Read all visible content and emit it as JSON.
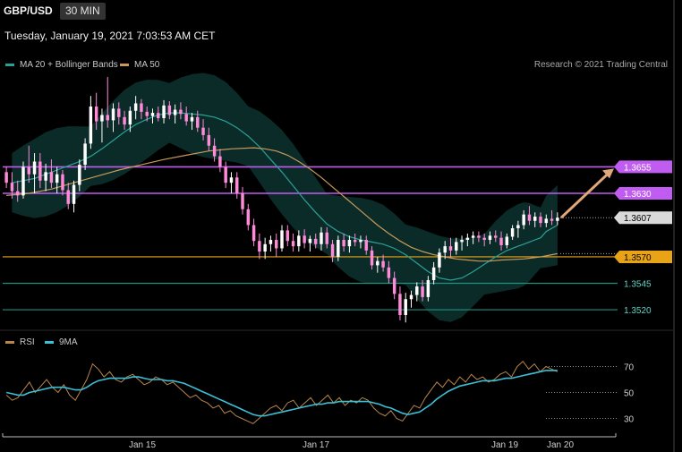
{
  "header": {
    "symbol": "GBP/USD",
    "timeframe": "30 MIN",
    "datetime": "Tuesday, January 19, 2021 7:03:53 AM CET"
  },
  "legend": {
    "ma20": "MA 20 + Bollinger Bands",
    "ma50": "MA 50",
    "credit": "Research © 2021 Trading Central",
    "rsi": "RSI",
    "rsi_ma": "9MA"
  },
  "colors": {
    "ma20": "#2aa198",
    "ma50": "#c79a5b",
    "resistance": "#c15cf0",
    "support": "#e8a317",
    "support_weak": "#1f8f80",
    "arrow": "#e0a878",
    "rsi": "#b8864b",
    "rsi_ma": "#3cc0d8",
    "candle_up": "#ffffff",
    "candle_down": "#ff8ad8"
  },
  "chart_data": [
    {
      "type": "candlestick",
      "title": "GBP/USD",
      "y_price_range": [
        1.3504,
        1.3745
      ],
      "x_labels": [
        "Jan 15",
        "Jan 17",
        "Jan 19",
        "Jan 20"
      ],
      "current_price": "1.3607",
      "levels": [
        {
          "label": "1.3655",
          "value": 1.3655,
          "kind": "resistance"
        },
        {
          "label": "1.3630",
          "value": 1.363,
          "kind": "resistance"
        },
        {
          "label": "1.3570",
          "value": 1.357,
          "kind": "support"
        },
        {
          "label": "1.3545",
          "value": 1.3545,
          "kind": "support_weak"
        },
        {
          "label": "1.3520",
          "value": 1.352,
          "kind": "support_weak"
        }
      ],
      "candles": [
        [
          1.365,
          1.3655,
          1.3635,
          1.364
        ],
        [
          1.364,
          1.365,
          1.3625,
          1.3632
        ],
        [
          1.3632,
          1.3642,
          1.3622,
          1.3628
        ],
        [
          1.3628,
          1.366,
          1.3625,
          1.3655
        ],
        [
          1.3655,
          1.3675,
          1.364,
          1.3648
        ],
        [
          1.3648,
          1.3668,
          1.363,
          1.366
        ],
        [
          1.366,
          1.3668,
          1.3635,
          1.3642
        ],
        [
          1.3642,
          1.3658,
          1.3632,
          1.365
        ],
        [
          1.365,
          1.3662,
          1.3635,
          1.364
        ],
        [
          1.364,
          1.3655,
          1.363,
          1.3648
        ],
        [
          1.3648,
          1.3652,
          1.3628,
          1.3633
        ],
        [
          1.3633,
          1.364,
          1.3615,
          1.362
        ],
        [
          1.362,
          1.3642,
          1.3612,
          1.3638
        ],
        [
          1.3638,
          1.3662,
          1.3632,
          1.3657
        ],
        [
          1.3657,
          1.3682,
          1.3652,
          1.3677
        ],
        [
          1.3677,
          1.3722,
          1.3672,
          1.3712
        ],
        [
          1.3712,
          1.3725,
          1.369,
          1.3698
        ],
        [
          1.3698,
          1.371,
          1.3678,
          1.3704
        ],
        [
          1.3704,
          1.374,
          1.3692,
          1.3699
        ],
        [
          1.3699,
          1.3715,
          1.3688,
          1.371
        ],
        [
          1.371,
          1.3716,
          1.3695,
          1.3702
        ],
        [
          1.3702,
          1.3708,
          1.369,
          1.3695
        ],
        [
          1.3695,
          1.3712,
          1.3688,
          1.3708
        ],
        [
          1.3708,
          1.3722,
          1.37,
          1.3715
        ],
        [
          1.3715,
          1.3719,
          1.37,
          1.3707
        ],
        [
          1.3707,
          1.3712,
          1.3698,
          1.3703
        ],
        [
          1.3703,
          1.371,
          1.3696,
          1.3706
        ],
        [
          1.3706,
          1.3712,
          1.3698,
          1.3701
        ],
        [
          1.3701,
          1.3718,
          1.3696,
          1.3713
        ],
        [
          1.3713,
          1.3717,
          1.37,
          1.3704
        ],
        [
          1.3704,
          1.3714,
          1.3696,
          1.3709
        ],
        [
          1.3709,
          1.3716,
          1.37,
          1.3705
        ],
        [
          1.3705,
          1.3712,
          1.3694,
          1.3698
        ],
        [
          1.3698,
          1.3706,
          1.369,
          1.3702
        ],
        [
          1.3702,
          1.3708,
          1.3688,
          1.3692
        ],
        [
          1.3692,
          1.37,
          1.368,
          1.3685
        ],
        [
          1.3685,
          1.3692,
          1.367,
          1.3675
        ],
        [
          1.3675,
          1.3682,
          1.366,
          1.3665
        ],
        [
          1.3665,
          1.3672,
          1.365,
          1.3655
        ],
        [
          1.3655,
          1.366,
          1.3635,
          1.364
        ],
        [
          1.364,
          1.365,
          1.363,
          1.3645
        ],
        [
          1.3645,
          1.365,
          1.3625,
          1.363
        ],
        [
          1.363,
          1.3636,
          1.361,
          1.3615
        ],
        [
          1.3615,
          1.362,
          1.3595,
          1.36
        ],
        [
          1.36,
          1.3606,
          1.358,
          1.3585
        ],
        [
          1.3585,
          1.3592,
          1.3568,
          1.3575
        ],
        [
          1.3575,
          1.3588,
          1.3568,
          1.3582
        ],
        [
          1.3582,
          1.359,
          1.3575,
          1.3586
        ],
        [
          1.3586,
          1.3592,
          1.357,
          1.3578
        ],
        [
          1.3578,
          1.36,
          1.3575,
          1.3595
        ],
        [
          1.3595,
          1.36,
          1.358,
          1.3585
        ],
        [
          1.3585,
          1.3592,
          1.3575,
          1.358
        ],
        [
          1.358,
          1.3595,
          1.3575,
          1.359
        ],
        [
          1.359,
          1.3596,
          1.3578,
          1.3583
        ],
        [
          1.3583,
          1.359,
          1.3575,
          1.3587
        ],
        [
          1.3587,
          1.3592,
          1.3578,
          1.3582
        ],
        [
          1.3582,
          1.3598,
          1.3576,
          1.3593
        ],
        [
          1.3593,
          1.3598,
          1.3578,
          1.3582
        ],
        [
          1.3582,
          1.3586,
          1.3565,
          1.357
        ],
        [
          1.357,
          1.359,
          1.3566,
          1.3586
        ],
        [
          1.3586,
          1.3592,
          1.3575,
          1.358
        ],
        [
          1.358,
          1.359,
          1.3574,
          1.3586
        ],
        [
          1.3586,
          1.3592,
          1.358,
          1.3584
        ],
        [
          1.3584,
          1.359,
          1.3578,
          1.3586
        ],
        [
          1.3586,
          1.359,
          1.3572,
          1.3576
        ],
        [
          1.3576,
          1.358,
          1.3558,
          1.3562
        ],
        [
          1.3562,
          1.357,
          1.3555,
          1.3566
        ],
        [
          1.3566,
          1.3572,
          1.3556,
          1.356
        ],
        [
          1.356,
          1.3566,
          1.3545,
          1.355
        ],
        [
          1.355,
          1.3556,
          1.353,
          1.3535
        ],
        [
          1.3535,
          1.3542,
          1.351,
          1.3515
        ],
        [
          1.3515,
          1.3536,
          1.3508,
          1.353
        ],
        [
          1.353,
          1.3538,
          1.3522,
          1.3534
        ],
        [
          1.3534,
          1.3546,
          1.3528,
          1.3542
        ],
        [
          1.3542,
          1.3548,
          1.3528,
          1.3532
        ],
        [
          1.3532,
          1.3552,
          1.3528,
          1.3548
        ],
        [
          1.3548,
          1.3565,
          1.3544,
          1.356
        ],
        [
          1.356,
          1.3578,
          1.3555,
          1.3574
        ],
        [
          1.3574,
          1.3585,
          1.3568,
          1.358
        ],
        [
          1.358,
          1.3588,
          1.357,
          1.3576
        ],
        [
          1.3576,
          1.3588,
          1.3572,
          1.3584
        ],
        [
          1.3584,
          1.359,
          1.3576,
          1.3586
        ],
        [
          1.3586,
          1.3592,
          1.358,
          1.3588
        ],
        [
          1.3588,
          1.3594,
          1.3582,
          1.359
        ],
        [
          1.359,
          1.3594,
          1.3584,
          1.3588
        ],
        [
          1.3588,
          1.3592,
          1.358,
          1.3586
        ],
        [
          1.3586,
          1.3594,
          1.3582,
          1.359
        ],
        [
          1.359,
          1.3595,
          1.3584,
          1.3588
        ],
        [
          1.3588,
          1.3594,
          1.3576,
          1.3581
        ],
        [
          1.3581,
          1.3592,
          1.3578,
          1.3589
        ],
        [
          1.3589,
          1.36,
          1.3586,
          1.3597
        ],
        [
          1.3597,
          1.3604,
          1.3588,
          1.36
        ],
        [
          1.36,
          1.3614,
          1.3596,
          1.361
        ],
        [
          1.361,
          1.3618,
          1.36,
          1.3604
        ],
        [
          1.3604,
          1.3612,
          1.3598,
          1.3608
        ],
        [
          1.3608,
          1.3612,
          1.3598,
          1.3602
        ],
        [
          1.3602,
          1.361,
          1.3598,
          1.3606
        ],
        [
          1.3606,
          1.3614,
          1.36,
          1.3604
        ],
        [
          1.3604,
          1.3612,
          1.36,
          1.3607
        ]
      ],
      "ma20": [
        1.364,
        1.3642,
        1.3644,
        1.3648,
        1.3652,
        1.3656,
        1.366,
        1.3665,
        1.3672,
        1.368,
        1.3688,
        1.3695,
        1.37,
        1.3704,
        1.3706,
        1.3706,
        1.3705,
        1.3704,
        1.3702,
        1.3698,
        1.3692,
        1.3684,
        1.3674,
        1.3662,
        1.365,
        1.3637,
        1.3624,
        1.3612,
        1.3601,
        1.3594,
        1.3589,
        1.3586,
        1.3584,
        1.3582,
        1.3578,
        1.3572,
        1.3564,
        1.3556,
        1.355,
        1.3548,
        1.355,
        1.3556,
        1.3563,
        1.357,
        1.3576,
        1.358,
        1.3582,
        1.3584,
        1.3586,
        1.3588,
        1.3594,
        1.36
      ],
      "ma20_x": [
        1,
        3,
        5,
        7,
        9,
        11,
        13,
        15,
        17,
        19,
        21,
        23,
        25,
        27,
        29,
        31,
        33,
        35,
        37,
        39,
        41,
        43,
        45,
        47,
        49,
        51,
        53,
        55,
        57,
        59,
        61,
        63,
        65,
        67,
        69,
        71,
        73,
        75,
        77,
        79,
        81,
        83,
        85,
        87,
        89,
        91,
        92,
        93,
        94,
        95,
        96,
        98
      ],
      "ma50": [
        1.3628,
        1.363,
        1.3634,
        1.364,
        1.3646,
        1.3652,
        1.3657,
        1.3662,
        1.3666,
        1.367,
        1.3672,
        1.3673,
        1.3672,
        1.367,
        1.3666,
        1.366,
        1.3653,
        1.3645,
        1.3636,
        1.3627,
        1.3618,
        1.3609,
        1.36,
        1.3592,
        1.3585,
        1.3579,
        1.3575,
        1.3572,
        1.357,
        1.3568,
        1.3567,
        1.3566,
        1.3566,
        1.3567,
        1.3568,
        1.357,
        1.3573
      ],
      "ma50_x": [
        0,
        4,
        8,
        12,
        16,
        20,
        24,
        28,
        32,
        36,
        40,
        44,
        46,
        48,
        50,
        52,
        54,
        56,
        58,
        60,
        62,
        64,
        66,
        68,
        70,
        72,
        74,
        76,
        78,
        80,
        82,
        84,
        86,
        88,
        92,
        95,
        98
      ]
    },
    {
      "type": "line",
      "title": "RSI",
      "y_ticks": [
        "70",
        "50",
        "30"
      ],
      "ylim": [
        20,
        80
      ],
      "series": [
        {
          "name": "RSI",
          "values": [
            48,
            44,
            46,
            52,
            58,
            50,
            55,
            60,
            54,
            50,
            56,
            48,
            44,
            52,
            60,
            72,
            68,
            62,
            66,
            60,
            58,
            62,
            64,
            60,
            56,
            58,
            62,
            60,
            56,
            58,
            54,
            50,
            46,
            48,
            44,
            42,
            38,
            40,
            34,
            36,
            32,
            30,
            28,
            26,
            30,
            34,
            38,
            40,
            36,
            42,
            44,
            38,
            42,
            46,
            40,
            44,
            48,
            42,
            46,
            40,
            44,
            42,
            46,
            44,
            38,
            34,
            32,
            36,
            30,
            28,
            34,
            40,
            38,
            46,
            52,
            58,
            54,
            60,
            56,
            62,
            58,
            64,
            60,
            62,
            58,
            60,
            64,
            66,
            62,
            70,
            74,
            68,
            72,
            66,
            70,
            68,
            66
          ]
        },
        {
          "name": "9MA",
          "values": [
            50,
            49,
            48,
            48,
            50,
            51,
            52,
            53,
            54,
            54,
            54,
            53,
            52,
            52,
            54,
            57,
            59,
            60,
            61,
            61,
            61,
            61,
            62,
            62,
            61,
            60,
            60,
            60,
            59,
            59,
            58,
            57,
            55,
            53,
            51,
            49,
            47,
            45,
            43,
            41,
            39,
            37,
            35,
            33,
            32,
            32,
            33,
            34,
            35,
            36,
            37,
            38,
            39,
            40,
            41,
            41,
            42,
            42,
            43,
            43,
            43,
            43,
            43,
            43,
            42,
            41,
            39,
            38,
            36,
            34,
            33,
            34,
            35,
            38,
            41,
            45,
            48,
            51,
            53,
            55,
            56,
            57,
            58,
            59,
            59,
            59,
            60,
            61,
            61,
            62,
            63,
            64,
            65,
            66,
            67,
            67,
            67
          ]
        }
      ]
    }
  ]
}
